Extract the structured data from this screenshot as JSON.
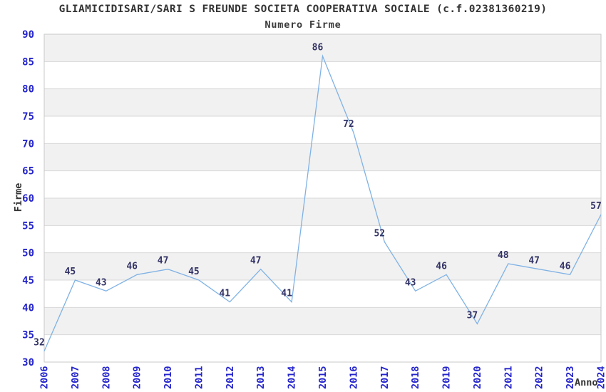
{
  "chart_data": {
    "type": "line",
    "title": "GLIAMICIDISARI/SARI S FREUNDE SOCIETA COOPERATIVA SOCIALE (c.f.02381360219)",
    "subtitle": "Numero Firme",
    "xlabel": "Anno",
    "ylabel": "Firme",
    "categories": [
      "2006",
      "2007",
      "2008",
      "2009",
      "2010",
      "2011",
      "2012",
      "2013",
      "2014",
      "2015",
      "2016",
      "2017",
      "2018",
      "2019",
      "2020",
      "2021",
      "2022",
      "2023",
      "2024"
    ],
    "values": [
      32,
      45,
      43,
      46,
      47,
      45,
      41,
      47,
      41,
      86,
      72,
      52,
      43,
      46,
      37,
      48,
      47,
      46,
      57
    ],
    "ylim": [
      30,
      90
    ],
    "ytick_step": 5,
    "grid": true,
    "banded_background": true,
    "legend_position": "none",
    "point_labels_visible": true,
    "colors": {
      "line": "#7fb2e5",
      "tick_label": "#2424cc",
      "point_label": "#333366",
      "band_gray": "#f1f1f1",
      "gridline": "#d8d8d8",
      "plot_border": "#c8c8c8",
      "title_text": "#333333",
      "background": "#ffffff"
    }
  }
}
